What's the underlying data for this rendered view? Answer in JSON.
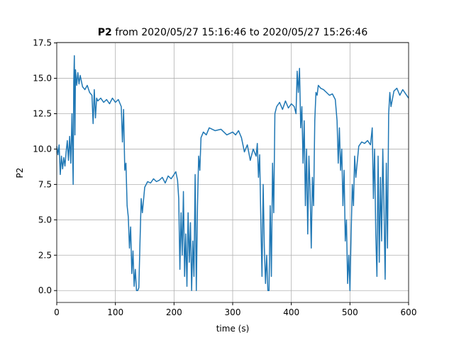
{
  "chart_data": {
    "type": "line",
    "title_bold": "P2",
    "title": "from 2020/05/27 15:16:46 to 2020/05/27 15:26:46",
    "x_label": "time (s)",
    "y_label": "P2",
    "grid": true,
    "xlim": [
      0,
      600
    ],
    "xticks": [
      0,
      100,
      200,
      300,
      400,
      500,
      600
    ],
    "ylim": [
      -0.84,
      17.53
    ],
    "yticks": [
      {
        "value": 0,
        "label": "0.0"
      },
      {
        "value": 2.5,
        "label": "2.5"
      },
      {
        "value": 5,
        "label": "5.0"
      },
      {
        "value": 7.5,
        "label": "7.5"
      },
      {
        "value": 10,
        "label": "10.0"
      },
      {
        "value": 12.5,
        "label": "12.5"
      },
      {
        "value": 15,
        "label": "15.0"
      },
      {
        "value": 17.5,
        "label": "17.5"
      }
    ],
    "x": [
      0,
      2,
      4,
      6,
      8,
      10,
      12,
      14,
      16,
      18,
      20,
      22,
      24,
      26,
      28,
      29,
      30,
      31,
      32,
      34,
      36,
      38,
      40,
      44,
      48,
      52,
      56,
      60,
      62,
      64,
      66,
      68,
      70,
      75,
      80,
      85,
      90,
      95,
      100,
      105,
      110,
      112,
      114,
      116,
      118,
      120,
      122,
      124,
      126,
      128,
      130,
      132,
      134,
      136,
      138,
      140,
      142,
      144,
      146,
      150,
      155,
      160,
      165,
      170,
      175,
      180,
      185,
      190,
      195,
      200,
      203,
      206,
      208,
      210,
      212,
      214,
      216,
      218,
      220,
      222,
      224,
      226,
      228,
      230,
      232,
      234,
      236,
      238,
      240,
      242,
      244,
      246,
      250,
      255,
      260,
      270,
      280,
      290,
      300,
      305,
      310,
      315,
      320,
      325,
      330,
      335,
      340,
      342,
      344,
      346,
      348,
      350,
      352,
      354,
      356,
      358,
      360,
      362,
      364,
      366,
      368,
      370,
      372,
      375,
      380,
      385,
      390,
      395,
      400,
      405,
      408,
      410,
      412,
      414,
      416,
      418,
      420,
      422,
      424,
      426,
      428,
      430,
      432,
      434,
      436,
      438,
      440,
      442,
      444,
      446,
      450,
      455,
      460,
      465,
      470,
      475,
      478,
      480,
      482,
      484,
      486,
      488,
      490,
      492,
      494,
      496,
      498,
      500,
      502,
      504,
      506,
      508,
      510,
      515,
      520,
      525,
      530,
      535,
      538,
      540,
      542,
      544,
      546,
      548,
      550,
      552,
      554,
      556,
      558,
      560,
      562,
      564,
      566,
      568,
      570,
      575,
      580,
      585,
      590,
      595,
      600
    ],
    "series": [
      {
        "name": "P2",
        "color": "#1f77b4",
        "values": [
          10.2,
          9.6,
          10.3,
          8.2,
          9.5,
          8.6,
          9.4,
          8.8,
          9.8,
          10.6,
          9.2,
          10.9,
          9.0,
          12.5,
          7.5,
          14.8,
          16.6,
          11.0,
          15.6,
          14.5,
          15.4,
          14.6,
          15.2,
          14.4,
          14.2,
          14.5,
          14.0,
          13.8,
          11.8,
          14.2,
          12.2,
          13.6,
          13.4,
          13.6,
          13.3,
          13.5,
          13.2,
          13.6,
          13.3,
          13.5,
          13.0,
          10.5,
          12.8,
          8.5,
          9.0,
          6.0,
          5.2,
          3.0,
          4.5,
          1.2,
          2.8,
          0.3,
          1.5,
          0,
          0,
          0.2,
          3.5,
          6.5,
          5.5,
          7.3,
          7.7,
          7.6,
          7.9,
          7.7,
          7.8,
          8.0,
          7.6,
          8.1,
          7.9,
          8.2,
          8.4,
          7.8,
          6.5,
          1.5,
          5.5,
          2.5,
          7.0,
          1.0,
          4.0,
          0.3,
          5.5,
          2.0,
          4.8,
          0,
          3.5,
          1.0,
          8.2,
          0,
          6.0,
          9.5,
          8.5,
          10.8,
          11.2,
          11.0,
          11.5,
          11.3,
          11.4,
          11.0,
          11.2,
          11.0,
          11.3,
          10.8,
          9.8,
          10.3,
          9.2,
          10.0,
          9.5,
          10.4,
          8.0,
          9.6,
          5.0,
          1.0,
          7.5,
          3.0,
          0.5,
          2.5,
          0,
          0,
          6.0,
          1.0,
          9.0,
          5.5,
          12.5,
          13.0,
          13.3,
          12.8,
          13.4,
          12.9,
          13.2,
          13.0,
          12.5,
          15.5,
          14.0,
          15.7,
          11.5,
          13.0,
          9.0,
          12.0,
          6.0,
          10.0,
          4.0,
          9.5,
          7.0,
          3.0,
          8.0,
          6.0,
          12.0,
          14.0,
          13.8,
          14.5,
          14.3,
          14.2,
          14.0,
          13.8,
          13.9,
          13.5,
          12.0,
          9.0,
          11.5,
          8.5,
          10.0,
          6.0,
          8.5,
          3.5,
          5.0,
          0.5,
          2.5,
          0,
          4.0,
          7.5,
          6.0,
          9.5,
          8.0,
          10.2,
          10.5,
          10.4,
          10.6,
          10.3,
          11.5,
          6.5,
          10.0,
          4.0,
          1.0,
          9.5,
          2.0,
          8.0,
          3.5,
          10.0,
          6.0,
          0.8,
          9.0,
          3.0,
          12.5,
          14.0,
          13.0,
          14.1,
          14.3,
          13.8,
          14.2,
          13.9,
          13.6
        ]
      }
    ]
  }
}
